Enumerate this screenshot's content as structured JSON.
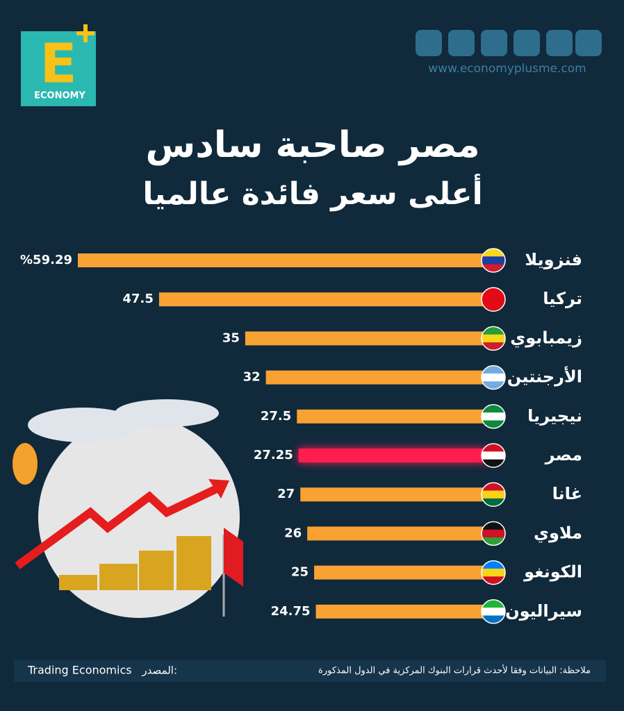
{
  "chart_data": {
    "type": "hbar",
    "title": "مصر صاحبة سادس",
    "subtitle": "أعلى سعر فائدة عالميا",
    "categories": [
      "فنزويلا",
      "تركيا",
      "زيمبابوي",
      "الأرجنتين",
      "نيجيريا",
      "مصر",
      "غانا",
      "ملاوي",
      "الكونغو",
      "سيراليون"
    ],
    "values": [
      59.29,
      47.5,
      35,
      32,
      27.5,
      27.25,
      27,
      26,
      25,
      24.75
    ],
    "value_labels": [
      "%59.29",
      "47.5",
      "35",
      "32",
      "27.5",
      "27.25",
      "27",
      "26",
      "25",
      "24.75"
    ],
    "colors": [
      "#f7a233",
      "#f7a233",
      "#f7a233",
      "#f7a233",
      "#f7a233",
      "#ff1d4f",
      "#f7a233",
      "#f7a233",
      "#f7a233",
      "#f7a233"
    ]
  },
  "logo": {
    "mark": "E",
    "name": "ECONOMY"
  },
  "website": "www.economyplusme.com",
  "note": "ملاحظة: البيانات وفقا لأحدث قرارات البنوك المركزية في الدول المذكورة",
  "source_label": "المصدر:",
  "source": "Trading Economics"
}
